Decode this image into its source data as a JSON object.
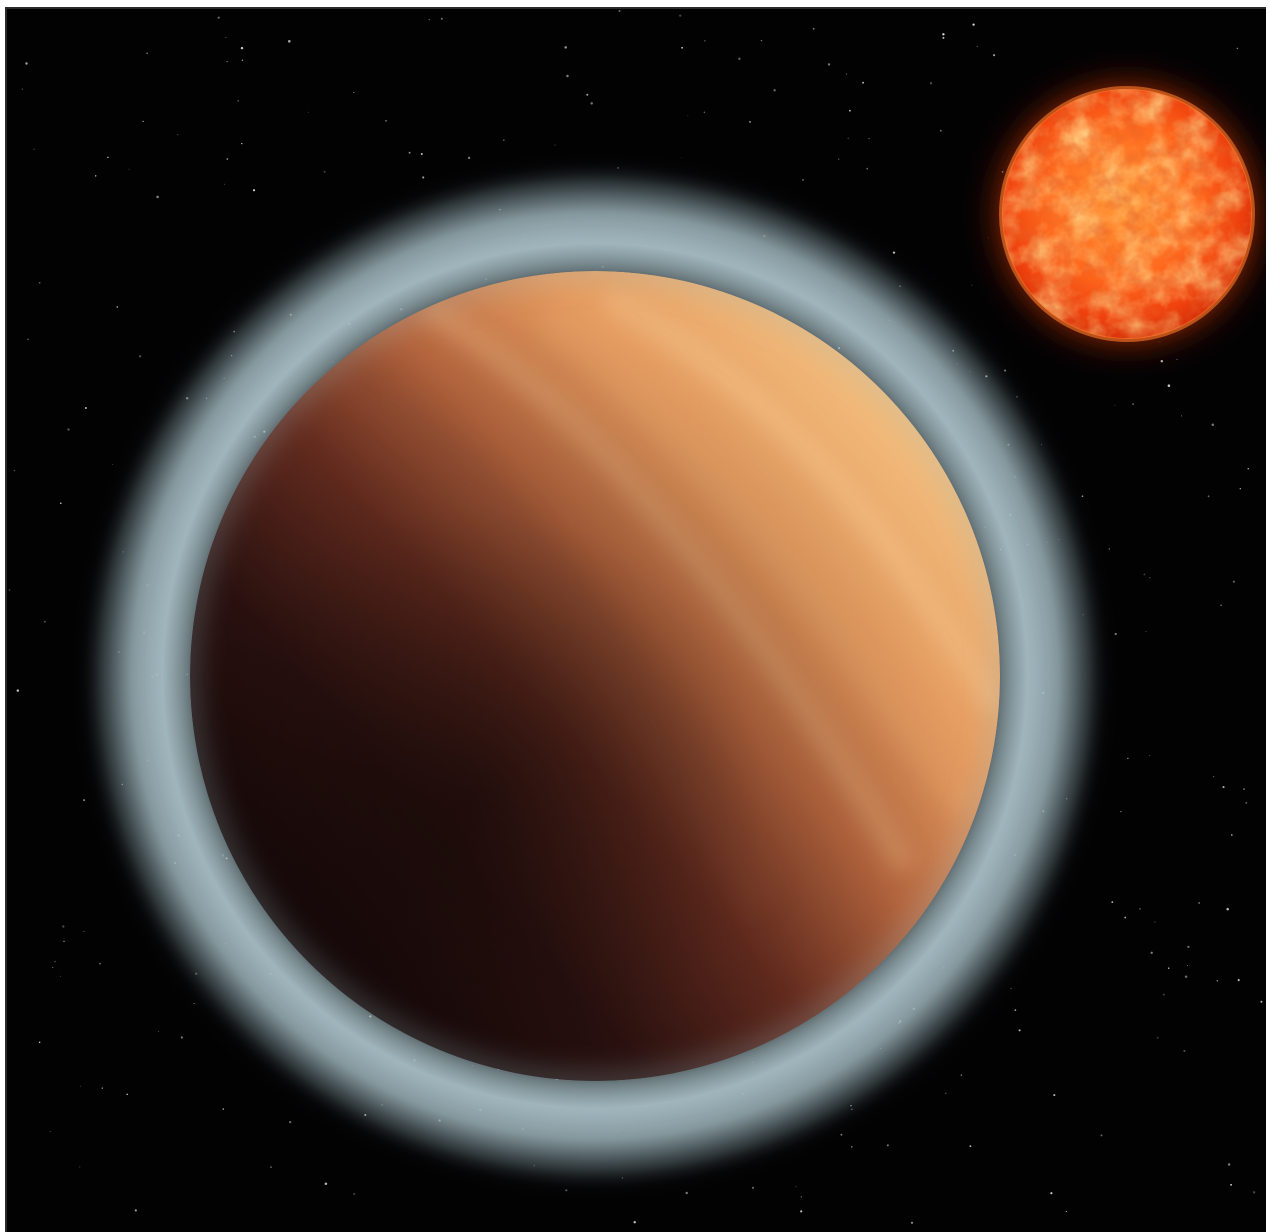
{
  "image": {
    "subject": "illustration",
    "colors": {
      "space": "#020203",
      "atmosphere_haze": "#9fb6bd",
      "planet_lit": "#f0b574",
      "planet_mid": "#b0603b",
      "planet_dark": "#1a0b0b",
      "star_core": "#ff6a1a",
      "star_hot": "#ffb04a",
      "star_glow": "#ff3a00"
    },
    "icons": [
      "planet-icon",
      "star-icon"
    ]
  }
}
